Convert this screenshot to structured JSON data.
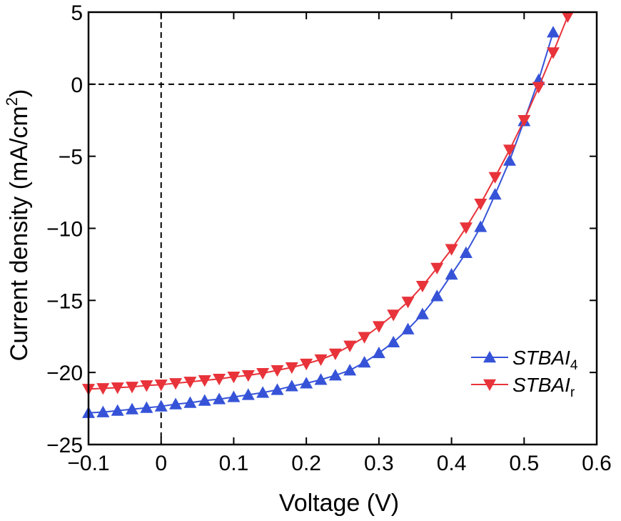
{
  "chart_data": {
    "type": "line",
    "title": "",
    "xlabel": "Voltage (V)",
    "ylabel_main": "Current density (mA/cm",
    "ylabel_sup": "2",
    "ylabel_close": ")",
    "xlim": [
      -0.1,
      0.6
    ],
    "ylim": [
      -25,
      5
    ],
    "xticks": [
      -0.1,
      0,
      0.1,
      0.2,
      0.3,
      0.4,
      0.5,
      0.6
    ],
    "xtick_labels": [
      "−0.1",
      "0",
      "0.1",
      "0.2",
      "0.3",
      "0.4",
      "0.5",
      "0.6"
    ],
    "yticks": [
      -25,
      -20,
      -15,
      -10,
      -5,
      0,
      5
    ],
    "ytick_labels": [
      "−25",
      "−20",
      "−15",
      "−10",
      "−5",
      "0",
      "5"
    ],
    "reference_lines": [
      {
        "axis": "x",
        "value": 0,
        "style": "dashed"
      },
      {
        "axis": "y",
        "value": 0,
        "style": "dashed"
      }
    ],
    "grid": false,
    "legend_position": "lower-right",
    "series": [
      {
        "name": "STBAI",
        "name_sub": "4",
        "color": "#3653d8",
        "marker": "triangle-up",
        "x": [
          -0.1,
          -0.08,
          -0.06,
          -0.04,
          -0.02,
          0.0,
          0.02,
          0.04,
          0.06,
          0.08,
          0.1,
          0.12,
          0.14,
          0.16,
          0.18,
          0.2,
          0.22,
          0.24,
          0.26,
          0.28,
          0.3,
          0.32,
          0.34,
          0.36,
          0.38,
          0.4,
          0.42,
          0.44,
          0.46,
          0.48,
          0.5,
          0.52,
          0.54
        ],
        "y": [
          -22.8,
          -22.75,
          -22.65,
          -22.55,
          -22.45,
          -22.35,
          -22.2,
          -22.1,
          -21.95,
          -21.85,
          -21.7,
          -21.55,
          -21.4,
          -21.2,
          -20.95,
          -20.75,
          -20.5,
          -20.2,
          -19.85,
          -19.3,
          -18.65,
          -17.9,
          -17.0,
          -15.95,
          -14.7,
          -13.2,
          -11.7,
          -9.9,
          -7.65,
          -5.3,
          -2.55,
          0.3,
          3.6
        ]
      },
      {
        "name": "STBAI",
        "name_sub": "r",
        "color": "#e8333a",
        "marker": "triangle-down",
        "x": [
          -0.1,
          -0.08,
          -0.06,
          -0.04,
          -0.02,
          0.0,
          0.02,
          0.04,
          0.06,
          0.08,
          0.1,
          0.12,
          0.14,
          0.16,
          0.18,
          0.2,
          0.22,
          0.24,
          0.26,
          0.28,
          0.3,
          0.32,
          0.34,
          0.36,
          0.38,
          0.4,
          0.42,
          0.44,
          0.46,
          0.48,
          0.5,
          0.52,
          0.54,
          0.56
        ],
        "y": [
          -21.15,
          -21.1,
          -21.05,
          -21.0,
          -20.9,
          -20.85,
          -20.75,
          -20.65,
          -20.55,
          -20.45,
          -20.3,
          -20.2,
          -20.05,
          -19.85,
          -19.65,
          -19.4,
          -19.1,
          -18.7,
          -18.15,
          -17.55,
          -16.8,
          -16.0,
          -15.1,
          -14.0,
          -12.75,
          -11.45,
          -9.95,
          -8.3,
          -6.45,
          -4.55,
          -2.5,
          -0.2,
          2.2,
          4.7
        ]
      }
    ]
  }
}
